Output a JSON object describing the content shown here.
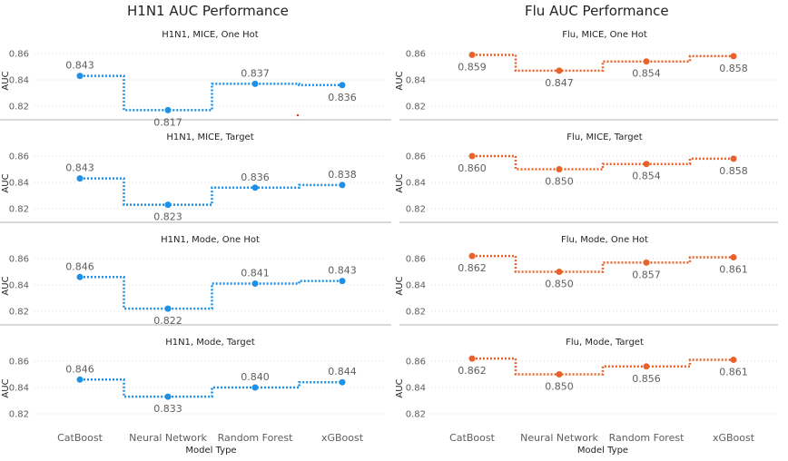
{
  "panels": [
    {
      "title": "H1N1 AUC Performance",
      "color": "#1E90E6",
      "xlabel": "Model Type",
      "ylabel": "AUC"
    },
    {
      "title": "Flu AUC Performance",
      "color": "#E8622C",
      "xlabel": "Model Type",
      "ylabel": "AUC"
    }
  ],
  "chart_data": [
    {
      "type": "line",
      "title": "H1N1, MICE, One Hot",
      "categories": [
        "CatBoost",
        "Neural Network",
        "Random Forest",
        "xGBoost"
      ],
      "values": [
        0.843,
        0.817,
        0.837,
        0.836
      ],
      "ylabel": "AUC",
      "xlabel": "",
      "yticks": [
        0.82,
        0.84,
        0.86
      ],
      "ylim": [
        0.81,
        0.87
      ],
      "grid": true,
      "step": true,
      "color": "#1E90E6"
    },
    {
      "type": "line",
      "title": "H1N1, MICE, Target",
      "categories": [
        "CatBoost",
        "Neural Network",
        "Random Forest",
        "xGBoost"
      ],
      "values": [
        0.843,
        0.823,
        0.836,
        0.838
      ],
      "ylabel": "AUC",
      "xlabel": "",
      "yticks": [
        0.82,
        0.84,
        0.86
      ],
      "ylim": [
        0.81,
        0.87
      ],
      "grid": true,
      "step": true,
      "color": "#1E90E6"
    },
    {
      "type": "line",
      "title": "H1N1, Mode, One Hot",
      "categories": [
        "CatBoost",
        "Neural Network",
        "Random Forest",
        "xGBoost"
      ],
      "values": [
        0.846,
        0.822,
        0.841,
        0.843
      ],
      "ylabel": "AUC",
      "xlabel": "",
      "yticks": [
        0.82,
        0.84,
        0.86
      ],
      "ylim": [
        0.81,
        0.87
      ],
      "grid": true,
      "step": true,
      "color": "#1E90E6"
    },
    {
      "type": "line",
      "title": "H1N1, Mode, Target",
      "categories": [
        "CatBoost",
        "Neural Network",
        "Random Forest",
        "xGBoost"
      ],
      "values": [
        0.846,
        0.833,
        0.84,
        0.844
      ],
      "ylabel": "AUC",
      "xlabel": "Model Type",
      "yticks": [
        0.82,
        0.84,
        0.86
      ],
      "ylim": [
        0.81,
        0.87
      ],
      "grid": true,
      "step": true,
      "color": "#1E90E6"
    },
    {
      "type": "line",
      "title": "Flu, MICE, One Hot",
      "categories": [
        "CatBoost",
        "Neural Network",
        "Random Forest",
        "xGBoost"
      ],
      "values": [
        0.859,
        0.847,
        0.854,
        0.858
      ],
      "ylabel": "AUC",
      "xlabel": "",
      "yticks": [
        0.82,
        0.84,
        0.86
      ],
      "ylim": [
        0.81,
        0.87
      ],
      "grid": true,
      "step": true,
      "color": "#E8622C"
    },
    {
      "type": "line",
      "title": "Flu, MICE, Target",
      "categories": [
        "CatBoost",
        "Neural Network",
        "Random Forest",
        "xGBoost"
      ],
      "values": [
        0.86,
        0.85,
        0.854,
        0.858
      ],
      "ylabel": "AUC",
      "xlabel": "",
      "yticks": [
        0.82,
        0.84,
        0.86
      ],
      "ylim": [
        0.81,
        0.87
      ],
      "grid": true,
      "step": true,
      "color": "#E8622C"
    },
    {
      "type": "line",
      "title": "Flu, Mode, One Hot",
      "categories": [
        "CatBoost",
        "Neural Network",
        "Random Forest",
        "xGBoost"
      ],
      "values": [
        0.862,
        0.85,
        0.857,
        0.861
      ],
      "ylabel": "AUC",
      "xlabel": "",
      "yticks": [
        0.82,
        0.84,
        0.86
      ],
      "ylim": [
        0.81,
        0.87
      ],
      "grid": true,
      "step": true,
      "color": "#E8622C"
    },
    {
      "type": "line",
      "title": "Flu, Mode, Target",
      "categories": [
        "CatBoost",
        "Neural Network",
        "Random Forest",
        "xGBoost"
      ],
      "values": [
        0.862,
        0.85,
        0.856,
        0.861
      ],
      "ylabel": "AUC",
      "xlabel": "Model Type",
      "yticks": [
        0.82,
        0.84,
        0.86
      ],
      "ylim": [
        0.81,
        0.87
      ],
      "grid": true,
      "step": true,
      "color": "#E8622C"
    }
  ]
}
